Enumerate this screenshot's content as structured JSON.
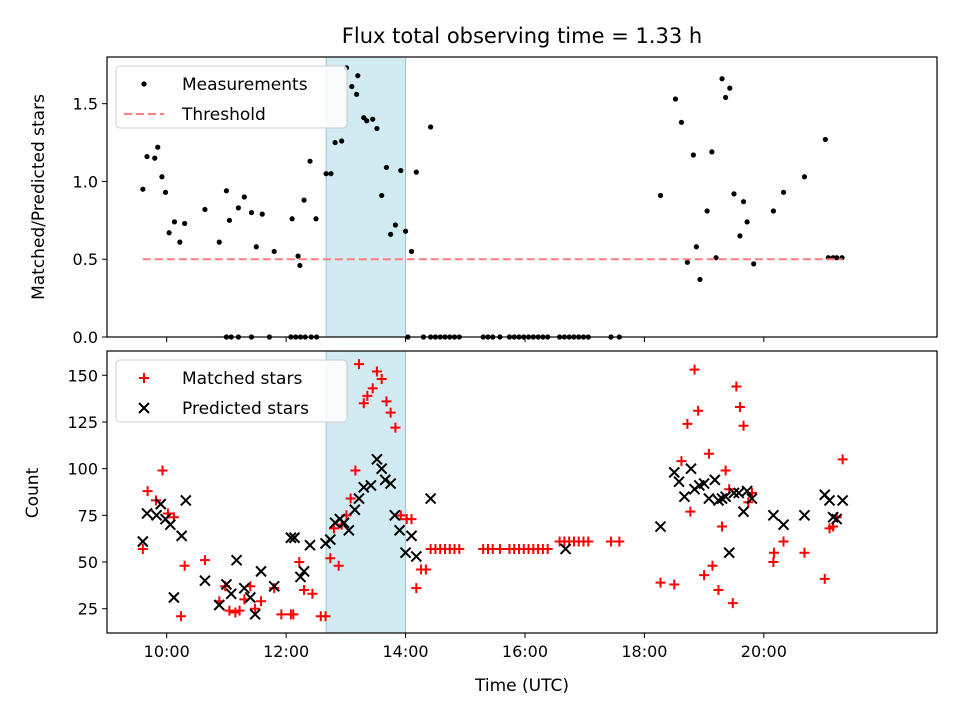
{
  "chart_data": [
    {
      "type": "scatter",
      "title": "Flux total observing time = 1.33 h",
      "ylabel": "Matched/Predicted stars",
      "xlabel": "",
      "xlim": [
        9.0,
        22.9
      ],
      "ylim": [
        0,
        1.8
      ],
      "x_ticks": [
        10,
        12,
        14,
        16,
        18,
        20
      ],
      "x_tick_labels": [],
      "y_ticks": [
        0.0,
        0.5,
        1.0,
        1.5
      ],
      "y_tick_labels": [
        "0.0",
        "0.5",
        "1.0",
        "1.5"
      ],
      "highlight_span": [
        12.67,
        14.0
      ],
      "highlight_color": "#add8e6",
      "legend": {
        "position": "top-left",
        "entries": [
          "Measurements",
          "Threshold"
        ]
      },
      "series": [
        {
          "name": "Measurements",
          "marker": "dot",
          "color": "#000000",
          "x": [
            9.6,
            9.67,
            9.8,
            9.85,
            9.92,
            9.98,
            10.04,
            10.13,
            10.22,
            10.3,
            10.64,
            10.88,
            11.0,
            11.05,
            11.2,
            11.3,
            11.42,
            11.5,
            11.6,
            11.8,
            12.1,
            12.2,
            12.23,
            12.3,
            12.4,
            12.5,
            12.67,
            12.75,
            12.82,
            12.93,
            13.01,
            13.1,
            13.18,
            13.2,
            13.3,
            13.35,
            13.45,
            13.52,
            13.6,
            13.68,
            13.75,
            13.83,
            13.92,
            14.0,
            14.1,
            14.18,
            14.42,
            18.27,
            18.52,
            18.62,
            18.72,
            18.82,
            18.87,
            18.93,
            19.05,
            19.13,
            19.2,
            19.3,
            19.36,
            19.43,
            19.5,
            19.6,
            19.66,
            19.72,
            19.83,
            20.16,
            20.33,
            20.68,
            21.03,
            21.08,
            21.16,
            21.22,
            21.31
          ],
          "y": [
            0.95,
            1.16,
            1.15,
            1.22,
            1.03,
            0.93,
            0.67,
            0.74,
            0.61,
            0.73,
            0.82,
            0.61,
            0.94,
            0.75,
            0.83,
            0.9,
            0.8,
            0.58,
            0.79,
            0.55,
            0.76,
            0.52,
            0.46,
            0.88,
            1.13,
            0.76,
            1.05,
            1.05,
            1.25,
            1.26,
            1.73,
            1.61,
            1.56,
            1.68,
            1.41,
            1.39,
            1.4,
            1.34,
            0.91,
            1.09,
            0.66,
            0.72,
            1.07,
            0.68,
            0.55,
            1.06,
            1.35,
            0.91,
            1.53,
            1.38,
            0.48,
            1.17,
            0.58,
            0.37,
            0.81,
            1.19,
            0.51,
            1.66,
            1.54,
            1.6,
            0.92,
            0.65,
            0.87,
            0.74,
            0.47,
            0.81,
            0.93,
            1.03,
            1.27,
            0.51,
            0.51,
            0.51,
            0.51
          ],
          "zero_x": [
            11.0,
            11.08,
            11.2,
            11.42,
            11.72,
            12.08,
            12.16,
            12.24,
            12.32,
            12.42,
            12.51,
            14.04,
            14.3,
            14.42,
            14.5,
            14.58,
            14.66,
            14.74,
            14.82,
            14.9,
            15.3,
            15.38,
            15.46,
            15.58,
            15.74,
            15.82,
            15.9,
            15.98,
            16.06,
            16.14,
            16.22,
            16.3,
            16.38,
            16.58,
            16.66,
            16.74,
            16.82,
            16.9,
            16.98,
            17.06,
            17.44,
            17.58
          ]
        },
        {
          "name": "Threshold",
          "marker": "dashed-line",
          "color": "#ff7f7f",
          "x": [
            9.6,
            21.32
          ],
          "y": [
            0.5,
            0.5
          ]
        }
      ]
    },
    {
      "type": "scatter",
      "title": "",
      "ylabel": "Count",
      "xlabel": "Time (UTC)",
      "xlim": [
        9.0,
        22.9
      ],
      "ylim": [
        12,
        163
      ],
      "x_ticks": [
        10,
        12,
        14,
        16,
        18,
        20
      ],
      "x_tick_labels": [
        "10:00",
        "12:00",
        "14:00",
        "16:00",
        "18:00",
        "20:00"
      ],
      "y_ticks": [
        25,
        50,
        75,
        100,
        125,
        150
      ],
      "y_tick_labels": [
        "25",
        "50",
        "75",
        "100",
        "125",
        "150"
      ],
      "highlight_span": [
        12.67,
        14.0
      ],
      "highlight_color": "#add8e6",
      "legend": {
        "position": "top-left",
        "entries": [
          "Matched stars",
          "Predicted stars"
        ]
      },
      "series": [
        {
          "name": "Matched stars",
          "marker": "plus",
          "color": "#ff0000",
          "x": [
            9.6,
            9.68,
            9.82,
            9.93,
            10.02,
            10.12,
            10.24,
            10.3,
            10.64,
            10.88,
            10.98,
            11.05,
            11.15,
            11.22,
            11.3,
            11.4,
            11.48,
            11.58,
            11.8,
            11.92,
            12.08,
            12.12,
            12.22,
            12.3,
            12.44,
            12.58,
            12.66,
            12.74,
            12.8,
            12.88,
            12.93,
            13.01,
            13.08,
            13.16,
            13.22,
            13.3,
            13.36,
            13.45,
            13.52,
            13.6,
            13.68,
            13.75,
            13.83,
            13.92,
            14.02,
            14.1,
            14.18,
            14.26,
            14.34,
            14.42,
            14.5,
            14.58,
            14.66,
            14.74,
            14.82,
            14.9,
            15.3,
            15.38,
            15.46,
            15.58,
            15.74,
            15.82,
            15.9,
            15.98,
            16.06,
            16.14,
            16.22,
            16.3,
            16.38,
            16.58,
            16.66,
            16.74,
            16.82,
            16.9,
            16.98,
            17.06,
            17.44,
            17.58,
            18.27,
            18.5,
            18.62,
            18.72,
            18.77,
            18.84,
            18.9,
            19.0,
            19.08,
            19.14,
            19.24,
            19.3,
            19.36,
            19.42,
            19.48,
            19.54,
            19.6,
            19.66,
            19.74,
            19.8,
            20.16,
            20.17,
            20.33,
            20.68,
            21.02,
            21.1,
            21.16,
            21.22,
            21.32
          ],
          "y": [
            57,
            88,
            83,
            99,
            76,
            74,
            21,
            48,
            51,
            29,
            37,
            24,
            23,
            24,
            30,
            37,
            25,
            29,
            36,
            22,
            22,
            22,
            50,
            35,
            33,
            21,
            21,
            52,
            68,
            48,
            70,
            75,
            84,
            99,
            156,
            135,
            139,
            143,
            152,
            148,
            136,
            130,
            122,
            75,
            73,
            73,
            36,
            46,
            46,
            57,
            57,
            57,
            57,
            57,
            57,
            57,
            57,
            57,
            57,
            57,
            57,
            57,
            57,
            57,
            57,
            57,
            57,
            57,
            57,
            61,
            61,
            61,
            61,
            61,
            61,
            61,
            61,
            61,
            39,
            38,
            104,
            124,
            77,
            153,
            131,
            43,
            108,
            48,
            35,
            69,
            99,
            89,
            28,
            144,
            133,
            123,
            82,
            87,
            50,
            55,
            61,
            55,
            41,
            68,
            69,
            74,
            105
          ]
        },
        {
          "name": "Predicted stars",
          "marker": "x",
          "color": "#000000",
          "x": [
            9.6,
            9.67,
            9.83,
            9.9,
            9.98,
            10.06,
            10.12,
            10.25,
            10.32,
            10.64,
            10.88,
            11.0,
            11.08,
            11.17,
            11.3,
            11.4,
            11.48,
            11.58,
            11.8,
            12.08,
            12.14,
            12.24,
            12.3,
            12.4,
            12.66,
            12.74,
            12.82,
            12.9,
            12.97,
            13.05,
            13.15,
            13.22,
            13.3,
            13.42,
            13.52,
            13.6,
            13.66,
            13.75,
            13.82,
            13.9,
            14.0,
            14.1,
            14.18,
            14.42,
            16.68,
            18.27,
            18.5,
            18.58,
            18.67,
            18.78,
            18.84,
            18.92,
            19.0,
            19.08,
            19.18,
            19.24,
            19.3,
            19.36,
            19.42,
            19.5,
            19.58,
            19.66,
            19.72,
            19.8,
            20.16,
            20.33,
            20.68,
            21.02,
            21.1,
            21.16,
            21.22,
            21.32
          ],
          "y": [
            61,
            76,
            75,
            81,
            73,
            70,
            31,
            64,
            83,
            40,
            27,
            38,
            33,
            51,
            36,
            31,
            22,
            45,
            37,
            63,
            63,
            42,
            45,
            59,
            60,
            62,
            71,
            73,
            71,
            67,
            78,
            84,
            90,
            91,
            105,
            100,
            94,
            92,
            75,
            67,
            55,
            64,
            53,
            84,
            57,
            69,
            98,
            93,
            85,
            100,
            89,
            91,
            92,
            84,
            94,
            83,
            84,
            85,
            55,
            87,
            87,
            77,
            88,
            84,
            75,
            70,
            75,
            86,
            83,
            74,
            73,
            83
          ]
        }
      ]
    }
  ]
}
